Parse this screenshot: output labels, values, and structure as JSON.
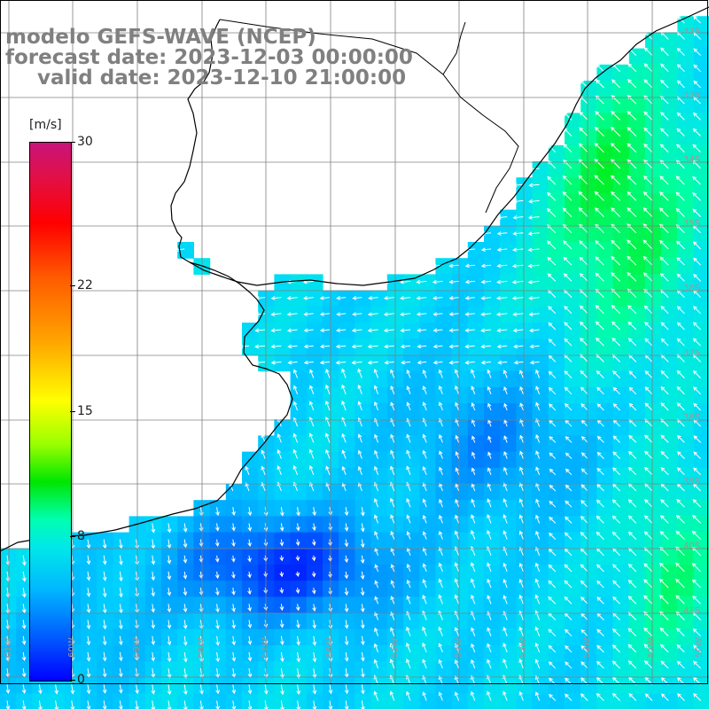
{
  "title": {
    "line1": "modelo GEFS-WAVE (NCEP)",
    "line2": "forecast date: 2023-12-03 00:00:00",
    "line3": "valid date: 2023-12-10 21:00:00"
  },
  "colorbar": {
    "unit": "[m/s]",
    "ticks": [
      "30",
      "22",
      "15",
      "8",
      "0"
    ],
    "tick_values": [
      30,
      22,
      15,
      8,
      0
    ],
    "min": 0,
    "max": 30
  },
  "map": {
    "variable": "wind speed with direction arrows",
    "lat_labels_right": [
      "32S",
      "33S",
      "34S",
      "35S",
      "36S",
      "37S",
      "38S",
      "39S",
      "40S",
      "41S"
    ],
    "lon_labels_bottom": [
      "61W",
      "60W",
      "59W",
      "58W",
      "57W",
      "56W",
      "55W",
      "54W",
      "53W",
      "52W",
      "51W",
      "50W"
    ],
    "colors": {
      "land": "#ffffff",
      "coast": "#000000",
      "grid": "#808080",
      "arrow": "#ffffff",
      "title": "#808080"
    }
  }
}
